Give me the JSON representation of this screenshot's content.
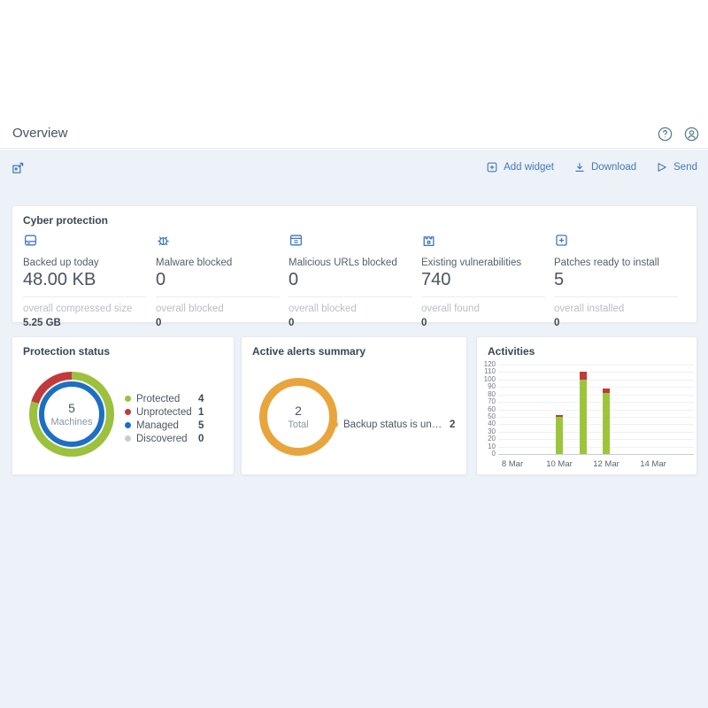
{
  "header": {
    "title": "Overview"
  },
  "toolbar": {
    "add_widget_label": "Add widget",
    "download_label": "Download",
    "send_label": "Send"
  },
  "cyber_protection": {
    "title": "Cyber protection",
    "metrics": [
      {
        "icon": "backup-drive-icon",
        "label": "Backed up today",
        "value": "48.00 KB",
        "sub_label": "overall compressed size",
        "sub_value": "5.25 GB"
      },
      {
        "icon": "bug-icon",
        "label": "Malware blocked",
        "value": "0",
        "sub_label": "overall blocked",
        "sub_value": "0"
      },
      {
        "icon": "malicious-url-icon",
        "label": "Malicious URLs blocked",
        "value": "0",
        "sub_label": "overall blocked",
        "sub_value": "0"
      },
      {
        "icon": "vulnerability-icon",
        "label": "Existing vulnerabilities",
        "value": "740",
        "sub_label": "overall found",
        "sub_value": "0"
      },
      {
        "icon": "patch-icon",
        "label": "Patches ready to install",
        "value": "5",
        "sub_label": "overall installed",
        "sub_value": "0"
      }
    ]
  },
  "widgets": {
    "protection_status": {
      "title": "Protection status",
      "center_value": "5",
      "center_label": "Machines",
      "legend": [
        {
          "label": "Protected",
          "value": "4",
          "color": "#9bc13d"
        },
        {
          "label": "Unprotected",
          "value": "1",
          "color": "#c23a3c"
        },
        {
          "label": "Managed",
          "value": "5",
          "color": "#1c6fc4"
        },
        {
          "label": "Discovered",
          "value": "0",
          "color": "#c7ccd1"
        }
      ]
    },
    "active_alerts": {
      "title": "Active alerts summary",
      "center_value": "2",
      "center_label": "Total",
      "legend": [
        {
          "label": "Backup status is unkno...",
          "value": "2",
          "color": "#e9a53d"
        }
      ]
    },
    "activities": {
      "title": "Activities"
    }
  },
  "chart_data": [
    {
      "type": "pie",
      "subtype": "donut-double-ring",
      "title": "Protection status",
      "outer_slices": [
        {
          "label": "Protected",
          "value": 4,
          "color": "#9bc13d"
        },
        {
          "label": "Unprotected",
          "value": 1,
          "color": "#c23a3c"
        }
      ],
      "inner_ring": {
        "label": "Managed",
        "value": 5,
        "color": "#1c6fc4"
      },
      "center": {
        "value": 5,
        "label": "Machines"
      },
      "legend": [
        [
          "Protected",
          4
        ],
        [
          "Unprotected",
          1
        ],
        [
          "Managed",
          5
        ],
        [
          "Discovered",
          0
        ]
      ]
    },
    {
      "type": "pie",
      "subtype": "donut",
      "title": "Active alerts summary",
      "slices": [
        {
          "label": "Backup status is unknown",
          "value": 2,
          "color": "#e9a53d"
        }
      ],
      "center": {
        "value": 2,
        "label": "Total"
      }
    },
    {
      "type": "bar",
      "stacked": true,
      "title": "Activities",
      "x": [
        "10 Mar",
        "11 Mar",
        "12 Mar"
      ],
      "x_days": [
        2,
        3,
        4
      ],
      "series": [
        {
          "color": "#9cc53c",
          "values": [
            50,
            100,
            82
          ]
        },
        {
          "color": "#c23a3c",
          "values": [
            2,
            11,
            6
          ]
        }
      ],
      "totals": [
        52,
        111,
        88
      ],
      "x_ticks": [
        "8 Mar",
        "10 Mar",
        "12 Mar",
        "14 Mar"
      ],
      "x_tick_days": [
        0,
        2,
        4,
        6
      ],
      "ylim": [
        0,
        120
      ],
      "y_step": 10,
      "grid": true,
      "legend_position": "none"
    }
  ],
  "colors": {
    "accent_blue": "#4478bd",
    "icon_blue": "#3d74c0",
    "green": "#9bc13d",
    "red": "#c23a3c",
    "managed_blue": "#1c6fc4",
    "orange": "#e9a53d",
    "gray": "#c7ccd1",
    "content_bg": "#edf2f8"
  }
}
